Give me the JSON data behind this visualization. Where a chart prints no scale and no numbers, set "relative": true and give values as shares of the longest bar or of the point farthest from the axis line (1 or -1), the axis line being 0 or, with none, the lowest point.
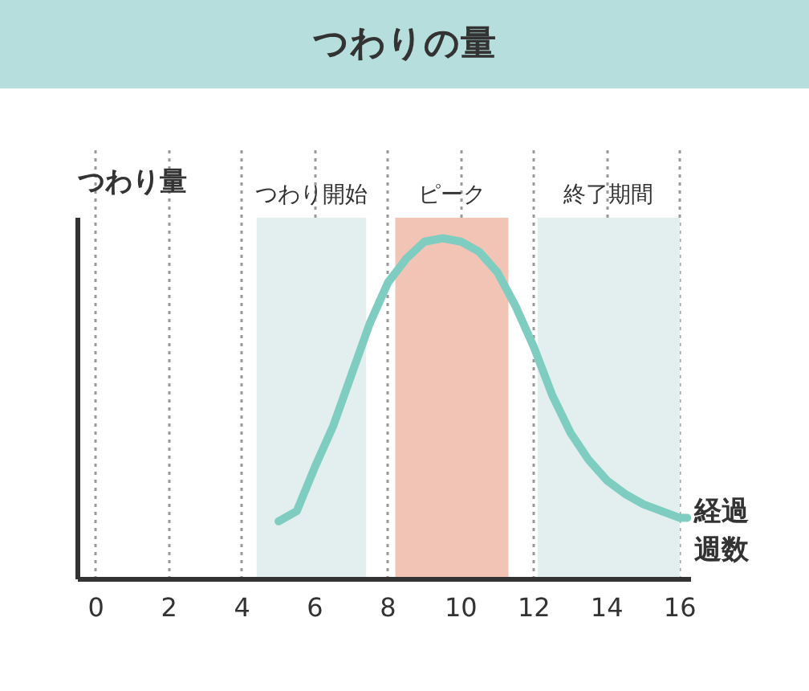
{
  "chart_data": {
    "type": "line",
    "title": "つわりの量",
    "ylabel": "つわり量",
    "xlabel": "経過週数",
    "relative": true,
    "xlim": [
      -0.5,
      16.3
    ],
    "xticks": [
      0,
      2,
      4,
      6,
      8,
      10,
      12,
      14,
      16
    ],
    "grid": "x",
    "marker": "none",
    "line_style": "solid",
    "x": [
      5,
      5.5,
      6,
      6.5,
      7,
      7.5,
      8,
      8.5,
      9,
      9.5,
      10,
      10.5,
      11,
      11.5,
      12,
      12.5,
      13,
      13.5,
      14,
      14.5,
      15,
      15.5,
      16,
      16.2
    ],
    "series": [
      {
        "color": "#7fcdc0",
        "values": [
          0.17,
          0.2,
          0.33,
          0.45,
          0.6,
          0.75,
          0.87,
          0.94,
          0.99,
          1.0,
          0.99,
          0.96,
          0.9,
          0.8,
          0.68,
          0.54,
          0.43,
          0.35,
          0.29,
          0.25,
          0.22,
          0.2,
          0.18,
          0.18
        ]
      }
    ],
    "bands": [
      {
        "axis": "x",
        "from": 4.4,
        "to": 7.4,
        "label": "つわり開始",
        "color": "#e3eeee"
      },
      {
        "axis": "x",
        "from": 8.2,
        "to": 11.3,
        "label": "ピーク",
        "color": "#f2c4b6"
      },
      {
        "axis": "x",
        "from": 12.1,
        "to": 16,
        "label": "終了期間",
        "color": "#e3eeee"
      }
    ]
  }
}
